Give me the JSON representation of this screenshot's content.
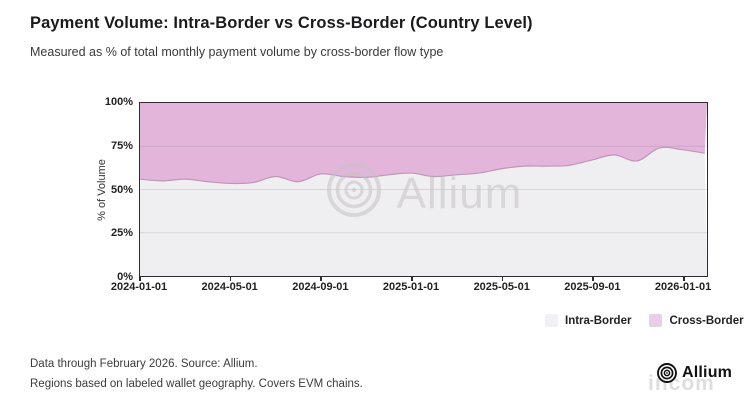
{
  "header": {
    "title": "Payment Volume: Intra-Border vs Cross-Border (Country Level)",
    "subtitle": "Measured as % of total monthly payment volume by cross-border flow type"
  },
  "chart_data": {
    "type": "area",
    "stacked": true,
    "title": "Payment Volume: Intra-Border vs Cross-Border (Country Level)",
    "xlabel": "",
    "ylabel": "% of Volume",
    "ylim": [
      0,
      100
    ],
    "grid": "horizontal",
    "legend_position": "bottom-right",
    "x": [
      "2024-01",
      "2024-02",
      "2024-03",
      "2024-04",
      "2024-05",
      "2024-06",
      "2024-07",
      "2024-08",
      "2024-09",
      "2024-10",
      "2024-11",
      "2024-12",
      "2025-01",
      "2025-02",
      "2025-03",
      "2025-04",
      "2025-05",
      "2025-06",
      "2025-07",
      "2025-08",
      "2025-09",
      "2025-10",
      "2025-11",
      "2025-12",
      "2026-01",
      "2026-02"
    ],
    "series": [
      {
        "name": "Intra-Border",
        "color": "#efeef0",
        "values": [
          56,
          55,
          56,
          54.5,
          53.5,
          54,
          57.5,
          54.5,
          59,
          57.5,
          57,
          58.5,
          59.5,
          57.5,
          58.5,
          59.5,
          62,
          63.5,
          63.5,
          64,
          67,
          70,
          66.5,
          74,
          73,
          71
        ]
      },
      {
        "name": "Cross-Border",
        "color": "#e3b5db",
        "values": [
          44,
          45,
          44,
          45.5,
          46.5,
          46,
          42.5,
          45.5,
          41,
          42.5,
          43,
          41.5,
          40.5,
          42.5,
          41.5,
          40.5,
          38,
          36.5,
          36.5,
          36,
          33,
          30,
          33.5,
          26,
          27,
          29
        ]
      }
    ],
    "y_ticks": [
      {
        "label": "100%",
        "value": 100
      },
      {
        "label": "75%",
        "value": 75
      },
      {
        "label": "50%",
        "value": 50
      },
      {
        "label": "25%",
        "value": 25
      },
      {
        "label": "0%",
        "value": 0
      }
    ],
    "x_ticks": [
      {
        "label": "2024-01-01",
        "month_index": 0
      },
      {
        "label": "2024-05-01",
        "month_index": 4
      },
      {
        "label": "2024-09-01",
        "month_index": 8
      },
      {
        "label": "2025-01-01",
        "month_index": 12
      },
      {
        "label": "2025-05-01",
        "month_index": 16
      },
      {
        "label": "2025-09-01",
        "month_index": 20
      },
      {
        "label": "2026-01-01",
        "month_index": 24
      }
    ],
    "boundary_stroke": "#c98fc0",
    "gridline_color": "rgba(120,115,120,0.20)"
  },
  "legend": {
    "items": [
      {
        "label": "Intra-Border",
        "color": "#f1f0f2"
      },
      {
        "label": "Cross-Border",
        "color": "#ebcde5"
      }
    ]
  },
  "watermark": {
    "text": "Allium"
  },
  "footer": {
    "line1": "Data through February 2026. Source: Allium.",
    "line2": "Regions based on labeled wallet geography. Covers EVM chains.",
    "brand": "Allium",
    "watermark_fragment": "incom"
  },
  "colors": {
    "intra_area": "#efeef0",
    "cross_area": "#e3b5db",
    "plot_border": "#2e2c2e",
    "watermark_gray": "#c7c3c8"
  }
}
